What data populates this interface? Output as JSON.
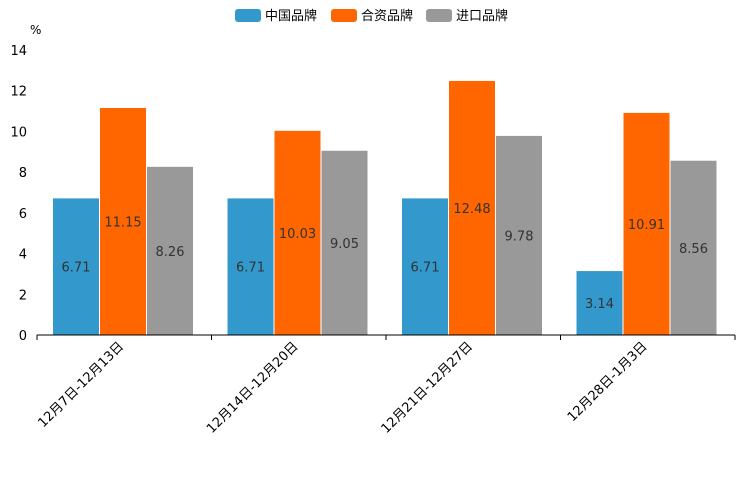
{
  "chart_data": {
    "type": "bar",
    "title": "",
    "ylabel": "%",
    "xlabel": "",
    "ylim": [
      0,
      14
    ],
    "yticks": [
      0,
      2,
      4,
      6,
      8,
      10,
      12,
      14
    ],
    "categories": [
      "12月7日-12月13日",
      "12月14日-12月20日",
      "12月21日-12月27日",
      "12月28日-1月3日"
    ],
    "series": [
      {
        "name": "中国品牌",
        "color": "#3399cc",
        "values": [
          6.71,
          6.71,
          6.71,
          3.14
        ]
      },
      {
        "name": "合资品牌",
        "color": "#ff6600",
        "values": [
          11.15,
          10.03,
          12.48,
          10.91
        ]
      },
      {
        "name": "进口品牌",
        "color": "#999999",
        "values": [
          8.26,
          9.05,
          9.78,
          8.56
        ]
      }
    ],
    "legend_position": "top-center",
    "grid": false
  }
}
